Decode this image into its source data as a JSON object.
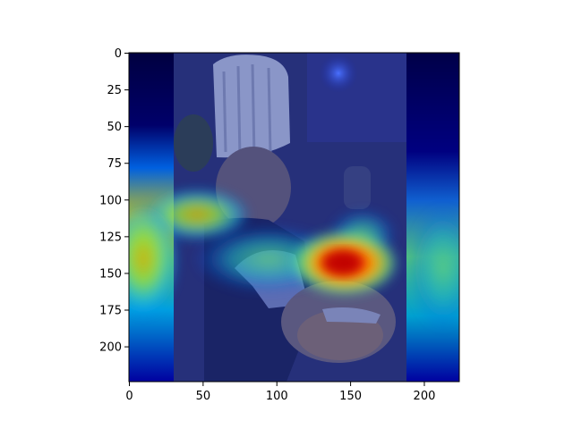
{
  "chart_data": {
    "type": "heatmap",
    "title": "",
    "xlabel": "",
    "ylabel": "",
    "image_size": [
      224,
      224
    ],
    "xlim": [
      0,
      224
    ],
    "ylim": [
      224,
      0
    ],
    "xticks": [
      0,
      50,
      100,
      150,
      200
    ],
    "yticks": [
      0,
      25,
      50,
      75,
      100,
      125,
      150,
      175,
      200
    ],
    "colormap": "jet",
    "base_image": "photo of a young boy wearing a white chef hat, stirring a bowl of cereal in a kitchen",
    "hotspots": [
      {
        "x": 143,
        "y": 143,
        "intensity": 1.0
      },
      {
        "x": 100,
        "y": 140,
        "intensity": 0.55
      },
      {
        "x": 10,
        "y": 140,
        "intensity": 0.6
      },
      {
        "x": 210,
        "y": 150,
        "intensity": 0.45
      }
    ],
    "grid": false,
    "legend": "none"
  }
}
